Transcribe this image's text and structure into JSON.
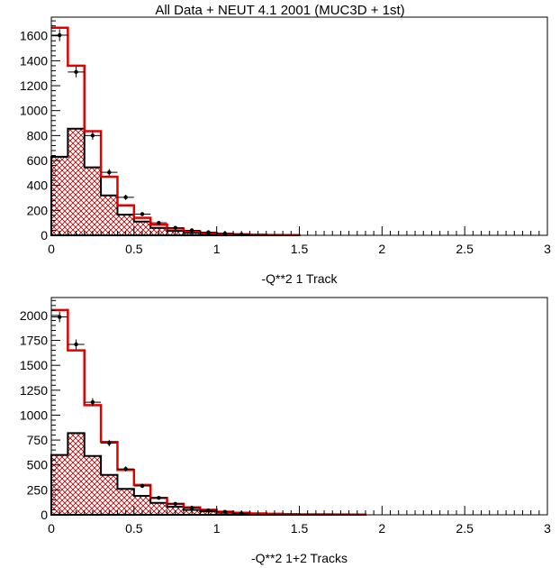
{
  "title": "All Data + NEUT 4.1 2001 (MUC3D + 1st)",
  "colors": {
    "mc_total": "#e00000",
    "mc_component": "#000000",
    "hatch": "#b00000",
    "data": "#000000"
  },
  "chart_data": [
    {
      "type": "bar",
      "xlabel": "-Q**2 1 Track",
      "xlim": [
        0,
        3
      ],
      "ylim": [
        0,
        1750
      ],
      "x_ticks": [
        "0",
        "0.5",
        "1",
        "1.5",
        "2",
        "2.5",
        "3"
      ],
      "y_ticks": [
        "0",
        "200",
        "400",
        "600",
        "800",
        "1000",
        "1200",
        "1400",
        "1600"
      ],
      "bin_edges": [
        0,
        0.1,
        0.2,
        0.3,
        0.4,
        0.5,
        0.6,
        0.7,
        0.8,
        0.9,
        1.0,
        1.1,
        1.2,
        1.3,
        1.4,
        1.5
      ],
      "series": [
        {
          "style": "red-outline",
          "values": [
            1665,
            1360,
            835,
            470,
            240,
            140,
            85,
            55,
            32,
            20,
            12,
            8,
            5,
            3,
            2
          ]
        },
        {
          "style": "black-hatched",
          "values": [
            630,
            855,
            545,
            320,
            165,
            110,
            60,
            35,
            20,
            12,
            8,
            5,
            3,
            2,
            1
          ]
        },
        {
          "style": "data-points",
          "x": [
            0.05,
            0.15,
            0.25,
            0.35,
            0.45,
            0.55,
            0.65,
            0.75,
            0.85,
            0.95,
            1.05,
            1.15
          ],
          "values": [
            1605,
            1310,
            800,
            505,
            305,
            170,
            100,
            60,
            40,
            25,
            15,
            8
          ]
        }
      ]
    },
    {
      "type": "bar",
      "xlabel": "-Q**2 1+2 Tracks",
      "xlim": [
        0,
        3
      ],
      "ylim": [
        0,
        2180
      ],
      "x_ticks": [
        "0",
        "0.5",
        "1",
        "1.5",
        "2",
        "2.5",
        "3"
      ],
      "y_ticks": [
        "0",
        "250",
        "500",
        "750",
        "1000",
        "1250",
        "1500",
        "1750",
        "2000"
      ],
      "bin_edges": [
        0,
        0.1,
        0.2,
        0.3,
        0.4,
        0.5,
        0.6,
        0.7,
        0.8,
        0.9,
        1.0,
        1.1,
        1.2,
        1.3,
        1.4,
        1.5,
        1.6,
        1.7,
        1.8,
        1.9
      ],
      "series": [
        {
          "style": "red-outline",
          "values": [
            2055,
            1650,
            1100,
            730,
            450,
            300,
            170,
            110,
            75,
            50,
            30,
            20,
            14,
            10,
            7,
            5,
            4,
            3,
            2
          ]
        },
        {
          "style": "black-hatched",
          "values": [
            600,
            820,
            590,
            400,
            260,
            190,
            120,
            80,
            50,
            35,
            22,
            15,
            10,
            7,
            5,
            3,
            2,
            1,
            1
          ]
        },
        {
          "style": "data-points",
          "x": [
            0.05,
            0.15,
            0.25,
            0.35,
            0.45,
            0.55,
            0.65,
            0.75,
            0.85,
            0.95,
            1.05,
            1.15
          ],
          "values": [
            1985,
            1710,
            1130,
            720,
            460,
            290,
            170,
            110,
            70,
            45,
            30,
            15
          ]
        }
      ]
    }
  ]
}
